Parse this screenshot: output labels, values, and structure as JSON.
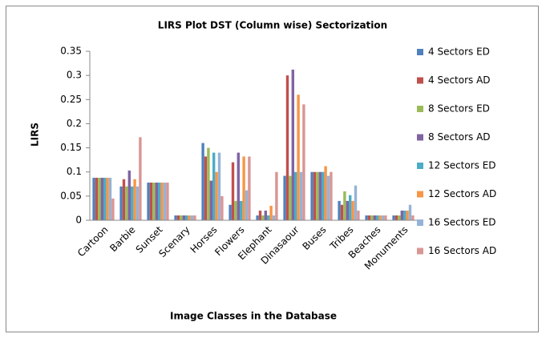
{
  "chart_data": {
    "type": "bar",
    "title": "LIRS Plot DST (Column wise) Sectorization",
    "x_label": "Image Classes  in the Database",
    "y_label": "LIRS",
    "categories": [
      "Cartoon",
      "Barbie",
      "Sunset",
      "Scenary",
      "Horses",
      "Flowers",
      "Elephant",
      "Dinasaour",
      "Buses",
      "Tribes",
      "Beaches",
      "Monuments"
    ],
    "series": [
      {
        "name": "4 Sectors ED",
        "color": "#4f81bd",
        "values": [
          0.088,
          0.07,
          0.078,
          0.01,
          0.16,
          0.032,
          0.01,
          0.092,
          0.1,
          0.04,
          0.01,
          0.01
        ]
      },
      {
        "name": "4 Sectors AD",
        "color": "#c0504d",
        "values": [
          0.088,
          0.085,
          0.078,
          0.01,
          0.132,
          0.12,
          0.02,
          0.3,
          0.1,
          0.032,
          0.01,
          0.01
        ]
      },
      {
        "name": "8 Sectors ED",
        "color": "#9bbb59",
        "values": [
          0.088,
          0.07,
          0.078,
          0.01,
          0.15,
          0.04,
          0.01,
          0.092,
          0.1,
          0.06,
          0.01,
          0.01
        ]
      },
      {
        "name": "8 Sectors AD",
        "color": "#8064a2",
        "values": [
          0.088,
          0.103,
          0.078,
          0.01,
          0.082,
          0.14,
          0.02,
          0.312,
          0.1,
          0.04,
          0.01,
          0.02
        ]
      },
      {
        "name": "12 Sectors ED",
        "color": "#4bacc6",
        "values": [
          0.088,
          0.07,
          0.078,
          0.01,
          0.14,
          0.04,
          0.01,
          0.1,
          0.1,
          0.052,
          0.01,
          0.02
        ]
      },
      {
        "name": "12 Sectors AD",
        "color": "#f79646",
        "values": [
          0.088,
          0.085,
          0.078,
          0.01,
          0.1,
          0.132,
          0.03,
          0.26,
          0.112,
          0.04,
          0.01,
          0.02
        ]
      },
      {
        "name": "16 Sectors ED",
        "color": "#95b3d7",
        "values": [
          0.088,
          0.07,
          0.078,
          0.01,
          0.14,
          0.062,
          0.01,
          0.1,
          0.092,
          0.072,
          0.01,
          0.032
        ]
      },
      {
        "name": "16 Sectors AD",
        "color": "#d99694",
        "values": [
          0.045,
          0.172,
          0.078,
          0.01,
          0.05,
          0.132,
          0.1,
          0.24,
          0.1,
          0.02,
          0.01,
          0.01
        ]
      }
    ],
    "ylim": [
      0,
      0.35
    ],
    "yticks": [
      0,
      0.05,
      0.1,
      0.15,
      0.2,
      0.25,
      0.3,
      0.35
    ],
    "grid": false,
    "legend": "right"
  }
}
